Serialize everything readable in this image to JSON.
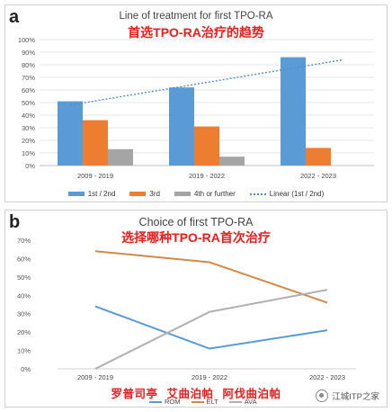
{
  "chart_data": [
    {
      "type": "bar",
      "panel_label": "a",
      "title": "Line of treatment for first TPO-RA",
      "subtitle": "首选TPO-RA治疗的趋势",
      "categories": [
        "2009 - 2019",
        "2019 - 2022",
        "2022 - 2023"
      ],
      "ylim": [
        0,
        100
      ],
      "yticks": [
        "0%",
        "10%",
        "20%",
        "30%",
        "40%",
        "50%",
        "60%",
        "70%",
        "80%",
        "90%",
        "100%"
      ],
      "grid": true,
      "series": [
        {
          "name": "1st / 2nd",
          "values": [
            51,
            62,
            86
          ],
          "color": "#5b9bd5"
        },
        {
          "name": "3rd",
          "values": [
            36,
            31,
            14
          ],
          "color": "#ed7d31"
        },
        {
          "name": "4th or further",
          "values": [
            13,
            7,
            0
          ],
          "color": "#a5a5a5"
        }
      ],
      "trendline": {
        "name": "Linear (1st / 2nd)",
        "start": 48,
        "end": 84,
        "color": "#4b8fd0"
      },
      "legend_position": "bottom"
    },
    {
      "type": "line",
      "panel_label": "b",
      "title": "Choice of first TPO-RA",
      "subtitle": "选择哪种TPO-RA首次治疗",
      "categories": [
        "2009 - 2019",
        "2019 - 2022",
        "2022 - 2023"
      ],
      "ylim": [
        0,
        70
      ],
      "yticks": [
        "0%",
        "10%",
        "20%",
        "30%",
        "40%",
        "50%",
        "60%",
        "70%"
      ],
      "grid": false,
      "series": [
        {
          "name": "ROM",
          "values": [
            34,
            11,
            21
          ],
          "color": "#5b9bd5"
        },
        {
          "name": "ELT",
          "values": [
            64,
            58,
            36
          ],
          "color": "#d08a4a"
        },
        {
          "name": "AVA",
          "values": [
            0,
            31,
            43
          ],
          "color": "#b0b0b0"
        }
      ],
      "series_cn_labels": [
        "罗普司亭",
        "艾曲泊帕",
        "阿伐曲泊帕"
      ],
      "legend_position": "bottom"
    }
  ],
  "watermark": {
    "text": "江城ITP之家",
    "icon": "wechat-channel-icon"
  }
}
